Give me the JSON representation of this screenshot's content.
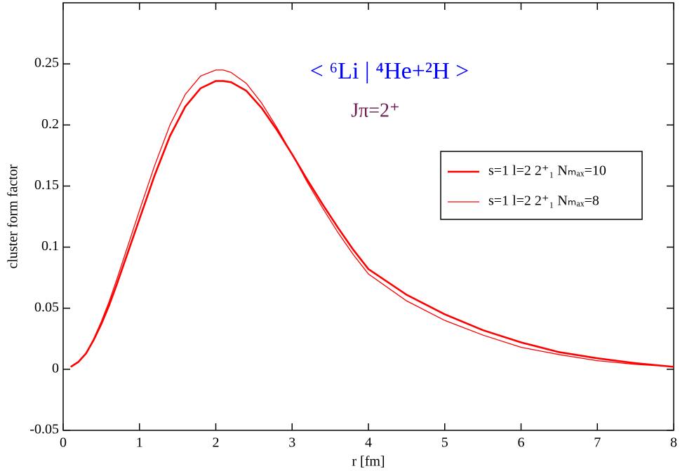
{
  "chart_data": {
    "type": "line",
    "title": "< ⁶Li | ⁴He+²H >",
    "subtitle": "Jπ=2⁺",
    "xlabel": "r [fm]",
    "ylabel": "cluster form factor",
    "xlim": [
      0,
      8
    ],
    "ylim": [
      -0.05,
      0.3
    ],
    "xticks": [
      0,
      1,
      2,
      3,
      4,
      5,
      6,
      7,
      8
    ],
    "yticks": [
      -0.05,
      0,
      0.05,
      0.1,
      0.15,
      0.2,
      0.25
    ],
    "legend": "upper right",
    "x": [
      0.1,
      0.2,
      0.3,
      0.4,
      0.5,
      0.6,
      0.7,
      0.8,
      0.9,
      1.0,
      1.2,
      1.4,
      1.6,
      1.8,
      2.0,
      2.1,
      2.2,
      2.4,
      2.6,
      2.8,
      3.0,
      3.2,
      3.4,
      3.6,
      3.8,
      4.0,
      4.5,
      5.0,
      5.5,
      6.0,
      6.5,
      7.0,
      7.5,
      8.0
    ],
    "series": [
      {
        "name": "s=1 l=2  2⁺₁ Nₘₐₓ=10",
        "color": "#ff0000",
        "values": [
          0.002,
          0.006,
          0.013,
          0.024,
          0.037,
          0.052,
          0.069,
          0.087,
          0.105,
          0.123,
          0.159,
          0.191,
          0.215,
          0.23,
          0.236,
          0.236,
          0.235,
          0.228,
          0.214,
          0.196,
          0.176,
          0.155,
          0.135,
          0.116,
          0.098,
          0.082,
          0.061,
          0.045,
          0.032,
          0.022,
          0.014,
          0.009,
          0.005,
          0.002
        ]
      },
      {
        "name": "s=1 l=2  2⁺₁ Nₘₐₓ=8",
        "color": "#ff0000",
        "values": [
          0.002,
          0.006,
          0.013,
          0.025,
          0.039,
          0.055,
          0.073,
          0.092,
          0.111,
          0.13,
          0.167,
          0.2,
          0.225,
          0.24,
          0.245,
          0.245,
          0.243,
          0.234,
          0.218,
          0.198,
          0.176,
          0.153,
          0.132,
          0.112,
          0.094,
          0.078,
          0.056,
          0.04,
          0.028,
          0.018,
          0.012,
          0.007,
          0.004,
          0.002
        ]
      }
    ]
  }
}
